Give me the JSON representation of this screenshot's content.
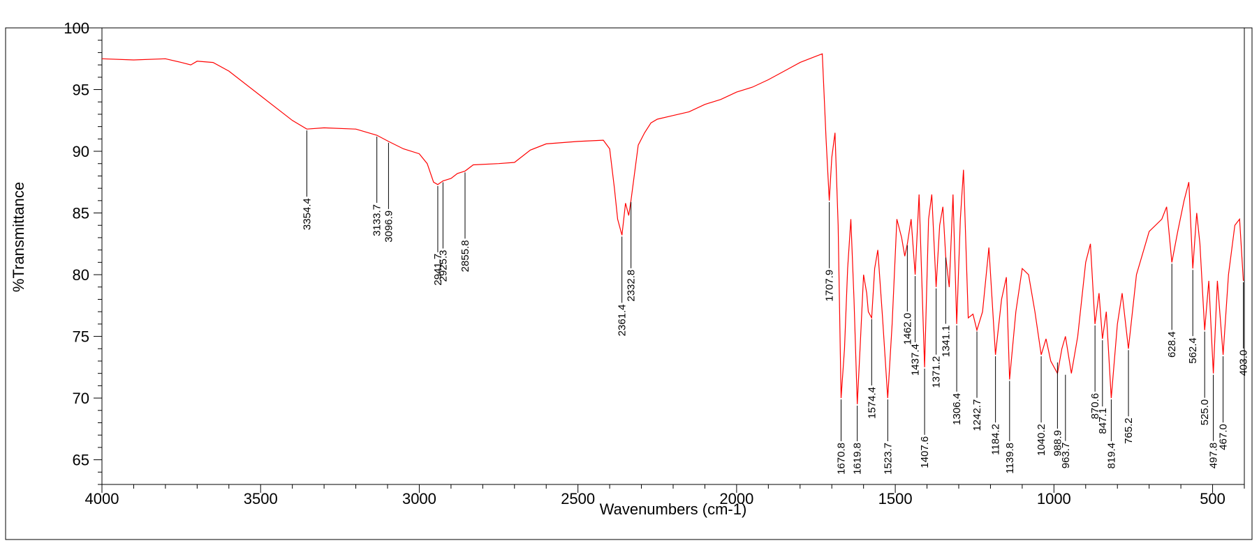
{
  "chart_data": {
    "type": "line",
    "title": "",
    "xlabel": "Wavenumbers (cm-1)",
    "ylabel": "%Transmittance",
    "xlim": [
      4000,
      400
    ],
    "ylim": [
      63,
      100
    ],
    "x_ticks": [
      4000,
      3500,
      3000,
      2500,
      2000,
      1500,
      1000,
      500
    ],
    "y_ticks": [
      65,
      70,
      75,
      80,
      85,
      90,
      95,
      100
    ],
    "grid": false,
    "legend": "none",
    "series_color": "#ff0000",
    "series": [
      {
        "x": [
          4000,
          3900,
          3800,
          3750,
          3720,
          3700,
          3650,
          3600,
          3500,
          3400,
          3354.4,
          3300,
          3200,
          3133.7,
          3096.9,
          3050,
          3000,
          2975,
          2955,
          2941.7,
          2925.3,
          2900,
          2880,
          2855.8,
          2830,
          2750,
          2700,
          2650,
          2600,
          2500,
          2420,
          2400,
          2385,
          2375,
          2361.4,
          2350,
          2340,
          2332.8,
          2310,
          2290,
          2270,
          2250,
          2200,
          2150,
          2100,
          2050,
          2000,
          1950,
          1900,
          1850,
          1800,
          1750,
          1730,
          1718,
          1707.9,
          1700,
          1690,
          1680,
          1670.8,
          1660,
          1650,
          1640,
          1630,
          1619.8,
          1610,
          1600,
          1590,
          1585,
          1574.4,
          1565,
          1555,
          1540,
          1523.7,
          1510,
          1495,
          1480,
          1470,
          1462.0,
          1450,
          1437.4,
          1425,
          1407.6,
          1395,
          1385,
          1371.2,
          1360,
          1350,
          1341.1,
          1330,
          1318,
          1306.4,
          1295,
          1285,
          1270,
          1255,
          1242.7,
          1225,
          1205,
          1184.2,
          1165,
          1150,
          1139.8,
          1120,
          1100,
          1080,
          1060,
          1040.2,
          1025,
          1010,
          988.9,
          975,
          963.7,
          945,
          925,
          900,
          885,
          870.6,
          858,
          847.1,
          835,
          819.4,
          800,
          785,
          765.2,
          740,
          700,
          660,
          645,
          628.4,
          610,
          590,
          575,
          562.4,
          550,
          540,
          525.0,
          512,
          497.8,
          485,
          467.0,
          450,
          430,
          415,
          403.0
        ],
        "y": [
          97.5,
          97.4,
          97.5,
          97.2,
          97.0,
          97.3,
          97.2,
          96.5,
          94.5,
          92.5,
          91.8,
          91.9,
          91.8,
          91.3,
          90.8,
          90.2,
          89.8,
          89.0,
          87.5,
          87.3,
          87.6,
          87.8,
          88.2,
          88.4,
          88.9,
          89.0,
          89.1,
          90.1,
          90.6,
          90.8,
          90.9,
          90.2,
          87.0,
          84.5,
          83.2,
          85.8,
          84.8,
          86.0,
          90.5,
          91.5,
          92.3,
          92.6,
          92.9,
          93.2,
          93.8,
          94.2,
          94.8,
          95.2,
          95.8,
          96.5,
          97.2,
          97.7,
          97.9,
          91.0,
          86.0,
          89.5,
          91.5,
          84.0,
          70.0,
          74.0,
          80.5,
          84.5,
          78.0,
          69.5,
          74.5,
          80.0,
          78.5,
          77.0,
          76.5,
          80.5,
          82.0,
          76.5,
          70.0,
          76.0,
          84.5,
          83.0,
          81.5,
          82.5,
          84.5,
          80.0,
          86.5,
          72.5,
          84.5,
          86.5,
          79.0,
          84.0,
          85.5,
          81.5,
          79.0,
          86.5,
          76.0,
          84.5,
          88.5,
          76.5,
          76.8,
          75.5,
          77.0,
          82.2,
          73.5,
          78.0,
          79.8,
          71.5,
          77.0,
          80.5,
          80.0,
          77.0,
          73.5,
          74.8,
          73.0,
          72.0,
          74.0,
          75.0,
          72.0,
          75.0,
          81.0,
          82.5,
          76.0,
          78.5,
          74.8,
          77.0,
          70.0,
          76.0,
          78.5,
          74.0,
          80.0,
          83.5,
          84.5,
          85.5,
          81.0,
          83.5,
          86.0,
          87.5,
          80.5,
          85.0,
          82.5,
          75.5,
          79.5,
          72.0,
          79.5,
          73.5,
          80.0,
          84.0,
          84.5,
          79.5
        ]
      }
    ],
    "peak_labels": [
      {
        "text": "3354.4",
        "x": 3354.4,
        "y": 91.8
      },
      {
        "text": "3133.7",
        "x": 3133.7,
        "y": 91.3
      },
      {
        "text": "3096.9",
        "x": 3096.9,
        "y": 90.8
      },
      {
        "text": "2941.7",
        "x": 2941.7,
        "y": 87.3
      },
      {
        "text": "2925.3",
        "x": 2925.3,
        "y": 87.6
      },
      {
        "text": "2855.8",
        "x": 2855.8,
        "y": 88.4
      },
      {
        "text": "2361.4",
        "x": 2361.4,
        "y": 83.2
      },
      {
        "text": "2332.8",
        "x": 2332.8,
        "y": 86.0
      },
      {
        "text": "1707.9",
        "x": 1707.9,
        "y": 86.0
      },
      {
        "text": "1670.8",
        "x": 1670.8,
        "y": 70.0
      },
      {
        "text": "1619.8",
        "x": 1619.8,
        "y": 69.5
      },
      {
        "text": "1574.4",
        "x": 1574.4,
        "y": 76.5
      },
      {
        "text": "1523.7",
        "x": 1523.7,
        "y": 70.0
      },
      {
        "text": "1462.0",
        "x": 1462.0,
        "y": 82.5
      },
      {
        "text": "1437.4",
        "x": 1437.4,
        "y": 80.0
      },
      {
        "text": "1407.6",
        "x": 1407.6,
        "y": 72.5
      },
      {
        "text": "1371.2",
        "x": 1371.2,
        "y": 79.0
      },
      {
        "text": "1341.1",
        "x": 1341.1,
        "y": 81.5
      },
      {
        "text": "1306.4",
        "x": 1306.4,
        "y": 76.0
      },
      {
        "text": "1242.7",
        "x": 1242.7,
        "y": 75.5
      },
      {
        "text": "1184.2",
        "x": 1184.2,
        "y": 73.5
      },
      {
        "text": "1139.8",
        "x": 1139.8,
        "y": 71.5
      },
      {
        "text": "1040.2",
        "x": 1040.2,
        "y": 73.5
      },
      {
        "text": "988.9",
        "x": 988.9,
        "y": 73.0
      },
      {
        "text": "963.7",
        "x": 963.7,
        "y": 72.0
      },
      {
        "text": "870.6",
        "x": 870.6,
        "y": 76.0
      },
      {
        "text": "847.1",
        "x": 847.1,
        "y": 74.8
      },
      {
        "text": "819.4",
        "x": 819.4,
        "y": 70.0
      },
      {
        "text": "765.2",
        "x": 765.2,
        "y": 74.0
      },
      {
        "text": "628.4",
        "x": 628.4,
        "y": 81.0
      },
      {
        "text": "562.4",
        "x": 562.4,
        "y": 80.5
      },
      {
        "text": "525.0",
        "x": 525.0,
        "y": 75.5
      },
      {
        "text": "497.8",
        "x": 497.8,
        "y": 72.0
      },
      {
        "text": "467.0",
        "x": 467.0,
        "y": 73.5
      },
      {
        "text": "403.0",
        "x": 403.0,
        "y": 79.5
      }
    ]
  }
}
